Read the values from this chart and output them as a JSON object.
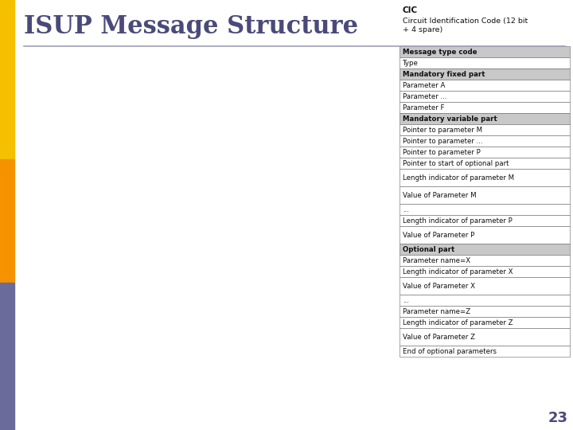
{
  "title": "ISUP Message Structure",
  "title_color": "#4a4a7a",
  "title_fontsize": 22,
  "bg_color": "#ffffff",
  "bar_yellow": "#f5c000",
  "bar_orange": "#f59200",
  "bar_purple": "#6b6b9b",
  "cic_header": "CIC",
  "cic_subtext": "Circuit Identification Code (12 bit\n+ 4 spare)",
  "line_color": "#a0a0b8",
  "table_rows": [
    {
      "text": "Message type code",
      "bold": true,
      "bg": "#c8c8c8",
      "tall": false
    },
    {
      "text": "Type",
      "bold": false,
      "bg": "#ffffff",
      "tall": false
    },
    {
      "text": "Mandatory fixed part",
      "bold": true,
      "bg": "#c8c8c8",
      "tall": false
    },
    {
      "text": "Parameter A",
      "bold": false,
      "bg": "#ffffff",
      "tall": false
    },
    {
      "text": "Parameter ...",
      "bold": false,
      "bg": "#ffffff",
      "tall": false
    },
    {
      "text": "Parameter F",
      "bold": false,
      "bg": "#ffffff",
      "tall": false
    },
    {
      "text": "Mandatory variable part",
      "bold": true,
      "bg": "#c8c8c8",
      "tall": false
    },
    {
      "text": "Pointer to parameter M",
      "bold": false,
      "bg": "#ffffff",
      "tall": false
    },
    {
      "text": "Pointer to parameter ...",
      "bold": false,
      "bg": "#ffffff",
      "tall": false
    },
    {
      "text": "Pointer to parameter P",
      "bold": false,
      "bg": "#ffffff",
      "tall": false
    },
    {
      "text": "Pointer to start of optional part",
      "bold": false,
      "bg": "#ffffff",
      "tall": false
    },
    {
      "text": "Length indicator of parameter M",
      "bold": false,
      "bg": "#ffffff",
      "tall": true
    },
    {
      "text": "Value of Parameter M",
      "bold": false,
      "bg": "#ffffff",
      "tall": true
    },
    {
      "text": "...",
      "bold": false,
      "bg": "#ffffff",
      "tall": false
    },
    {
      "text": "Length indicator of parameter P",
      "bold": false,
      "bg": "#ffffff",
      "tall": false
    },
    {
      "text": "Value of Parameter P",
      "bold": false,
      "bg": "#ffffff",
      "tall": true
    },
    {
      "text": "Optional part",
      "bold": true,
      "bg": "#c8c8c8",
      "tall": false
    },
    {
      "text": "Parameter name=X",
      "bold": false,
      "bg": "#ffffff",
      "tall": false
    },
    {
      "text": "Length indicator of parameter X",
      "bold": false,
      "bg": "#ffffff",
      "tall": false
    },
    {
      "text": "Value of Parameter X",
      "bold": false,
      "bg": "#ffffff",
      "tall": true
    },
    {
      "text": "...",
      "bold": false,
      "bg": "#ffffff",
      "tall": false
    },
    {
      "text": "Parameter name=Z",
      "bold": false,
      "bg": "#ffffff",
      "tall": false
    },
    {
      "text": "Length indicator of parameter Z",
      "bold": false,
      "bg": "#ffffff",
      "tall": false
    },
    {
      "text": "Value of Parameter Z",
      "bold": false,
      "bg": "#ffffff",
      "tall": true
    },
    {
      "text": "End of optional parameters",
      "bold": false,
      "bg": "#ffffff",
      "tall": false
    }
  ],
  "page_number": "23",
  "page_number_color": "#4a4a7a"
}
